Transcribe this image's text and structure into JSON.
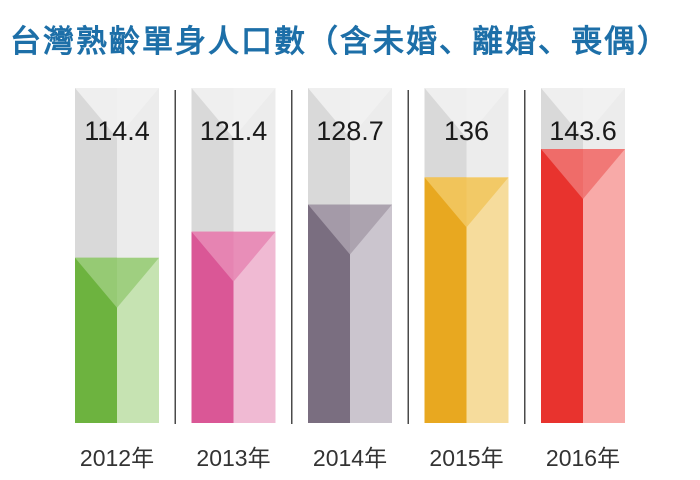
{
  "title": "台灣熟齡單身人口數（含未婚、離婚、喪偶）",
  "chart_data": {
    "type": "bar",
    "title": "台灣熟齡單身人口數（含未婚、離婚、喪偶）",
    "categories": [
      "2012年",
      "2013年",
      "2014年",
      "2015年",
      "2016年"
    ],
    "values": [
      114.4,
      121.4,
      128.7,
      136,
      143.6
    ],
    "value_labels": [
      "114.4",
      "121.4",
      "128.7",
      "136",
      "143.6"
    ],
    "ylim": [
      70,
      160
    ],
    "grid": false,
    "legend": "none",
    "colors": [
      {
        "dark": "#6db33f",
        "light": "#c6e3b2",
        "mid": "#9acc7a"
      },
      {
        "dark": "#da5796",
        "light": "#f0bad3",
        "mid": "#e789b5"
      },
      {
        "dark": "#7a6e80",
        "light": "#cbc5ce",
        "mid": "#a89eac"
      },
      {
        "dark": "#e8a820",
        "light": "#f6dc9c",
        "mid": "#f2c660"
      },
      {
        "dark": "#e8332e",
        "light": "#f8aaa8",
        "mid": "#f07270"
      }
    ],
    "empty_colors": {
      "dark": "#d9d9d9",
      "light": "#ececec"
    },
    "divider_color": "#4a4a4a"
  }
}
